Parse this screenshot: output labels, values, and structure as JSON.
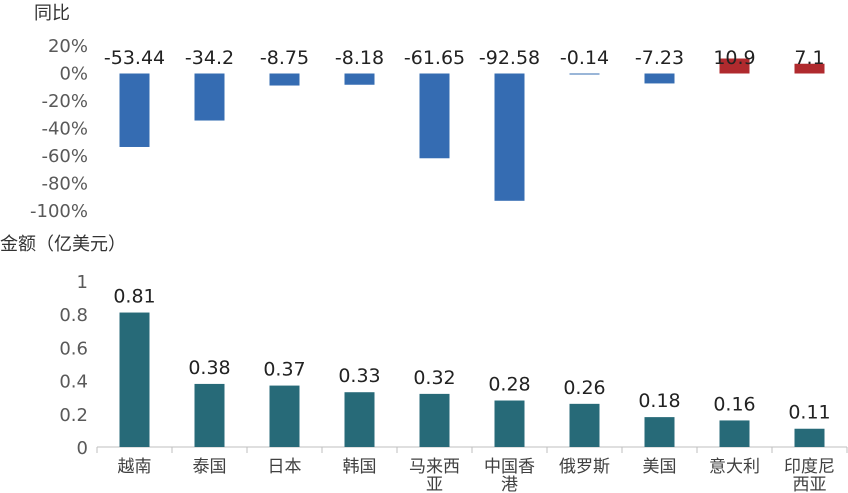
{
  "chart_data": [
    {
      "type": "bar",
      "ylabel": "同比",
      "categories": [
        "越南",
        "泰国",
        "日本",
        "韩国",
        "马来西亚",
        "中国香港",
        "俄罗斯",
        "美国",
        "意大利",
        "印度尼西亚"
      ],
      "values": [
        -53.44,
        -34.2,
        -8.75,
        -8.18,
        -61.65,
        -92.58,
        -0.14,
        -7.23,
        10.9,
        7.1
      ],
      "value_labels": [
        "-53.44",
        "-34.2",
        "-8.75",
        "-8.18",
        "-61.65",
        "-92.58",
        "-0.14",
        "-7.23",
        "10.9",
        "7.1"
      ],
      "ylim": [
        -100,
        20
      ],
      "yticks": [
        20,
        0,
        -20,
        -40,
        -60,
        -80,
        -100
      ],
      "ytick_labels": [
        "20%",
        "0%",
        "-20%",
        "-40%",
        "-60%",
        "-80%",
        "-100%"
      ],
      "colors": {
        "negative": "#356cb2",
        "positive": "#b02a2e"
      },
      "grid": false
    },
    {
      "type": "bar",
      "ylabel": "金额（亿美元）",
      "categories": [
        "越南",
        "泰国",
        "日本",
        "韩国",
        "马来西亚",
        "中国香港",
        "俄罗斯",
        "美国",
        "意大利",
        "印度尼西亚"
      ],
      "category_lines": [
        [
          "越南"
        ],
        [
          "泰国"
        ],
        [
          "日本"
        ],
        [
          "韩国"
        ],
        [
          "马来西",
          "亚"
        ],
        [
          "中国香",
          "港"
        ],
        [
          "俄罗斯"
        ],
        [
          "美国"
        ],
        [
          "意大利"
        ],
        [
          "印度尼",
          "西亚"
        ]
      ],
      "values": [
        0.81,
        0.38,
        0.37,
        0.33,
        0.32,
        0.28,
        0.26,
        0.18,
        0.16,
        0.11
      ],
      "value_labels": [
        "0.81",
        "0.38",
        "0.37",
        "0.33",
        "0.32",
        "0.28",
        "0.26",
        "0.18",
        "0.16",
        "0.11"
      ],
      "ylim": [
        0,
        1
      ],
      "yticks": [
        1,
        0.8,
        0.6,
        0.4,
        0.2,
        0
      ],
      "ytick_labels": [
        "1",
        "0.8",
        "0.6",
        "0.4",
        "0.2",
        "0"
      ],
      "colors": {
        "bar": "#276a78",
        "axis": "#bfbfbf"
      },
      "grid": false
    }
  ]
}
